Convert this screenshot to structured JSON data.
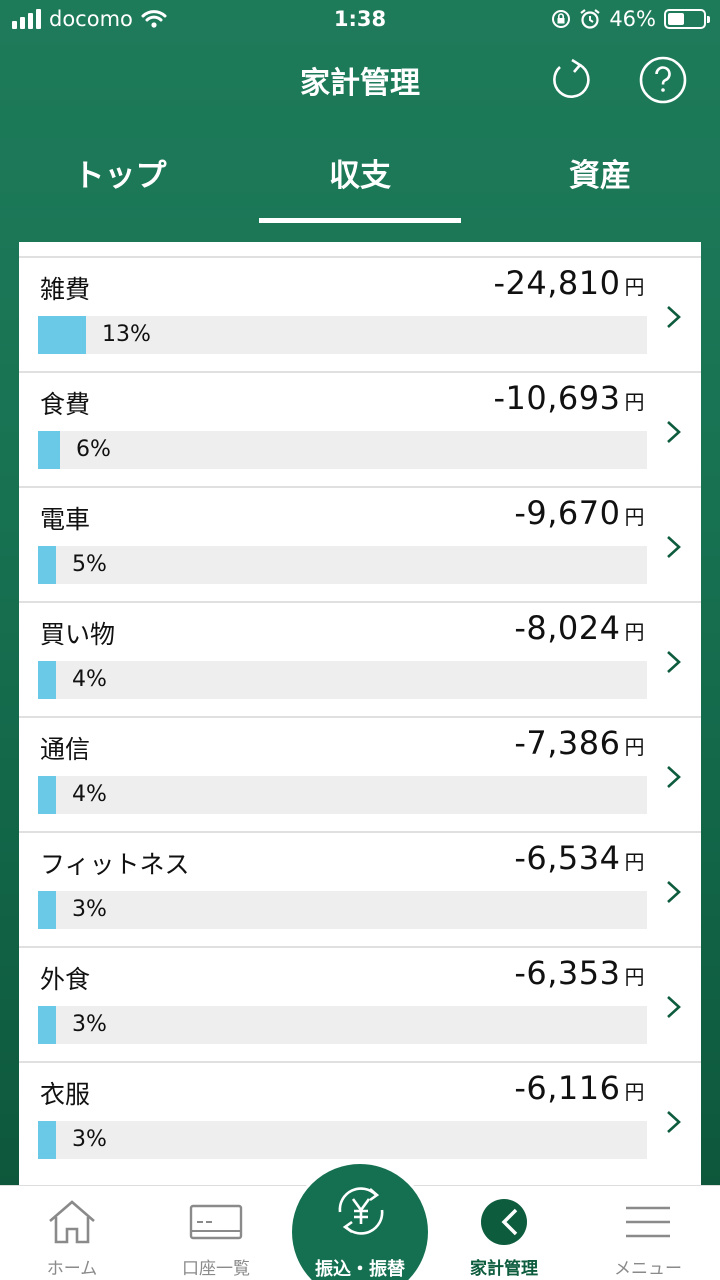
{
  "status_bar": {
    "carrier": "docomo",
    "time": "1:38",
    "battery_pct": "46%",
    "battery_level": 0.46
  },
  "header": {
    "title": "家計管理",
    "refresh_icon": "refresh-icon",
    "help_icon": "help-icon"
  },
  "tabs": [
    {
      "label": "トップ",
      "active": false
    },
    {
      "label": "収支",
      "active": true
    },
    {
      "label": "資産",
      "active": false
    }
  ],
  "expenses": [
    {
      "category": "雑費",
      "amount": "-24,810",
      "unit": "円",
      "pct": "13%",
      "share": 0.13
    },
    {
      "category": "食費",
      "amount": "-10,693",
      "unit": "円",
      "pct": "6%",
      "share": 0.06
    },
    {
      "category": "電車",
      "amount": "-9,670",
      "unit": "円",
      "pct": "5%",
      "share": 0.05
    },
    {
      "category": "買い物",
      "amount": "-8,024",
      "unit": "円",
      "pct": "4%",
      "share": 0.04
    },
    {
      "category": "通信",
      "amount": "-7,386",
      "unit": "円",
      "pct": "4%",
      "share": 0.04
    },
    {
      "category": "フィットネス",
      "amount": "-6,534",
      "unit": "円",
      "pct": "3%",
      "share": 0.03
    },
    {
      "category": "外食",
      "amount": "-6,353",
      "unit": "円",
      "pct": "3%",
      "share": 0.03
    },
    {
      "category": "衣服",
      "amount": "-6,116",
      "unit": "円",
      "pct": "3%",
      "share": 0.03
    }
  ],
  "tabbar": {
    "home": "ホーム",
    "accounts": "口座一覧",
    "transfer": "振込・振替",
    "household": "家計管理",
    "menu": "メニュー"
  },
  "colors": {
    "brand_green": "#177252",
    "bar_blue": "#6ac9e6",
    "bar_track": "#eeeeee"
  }
}
